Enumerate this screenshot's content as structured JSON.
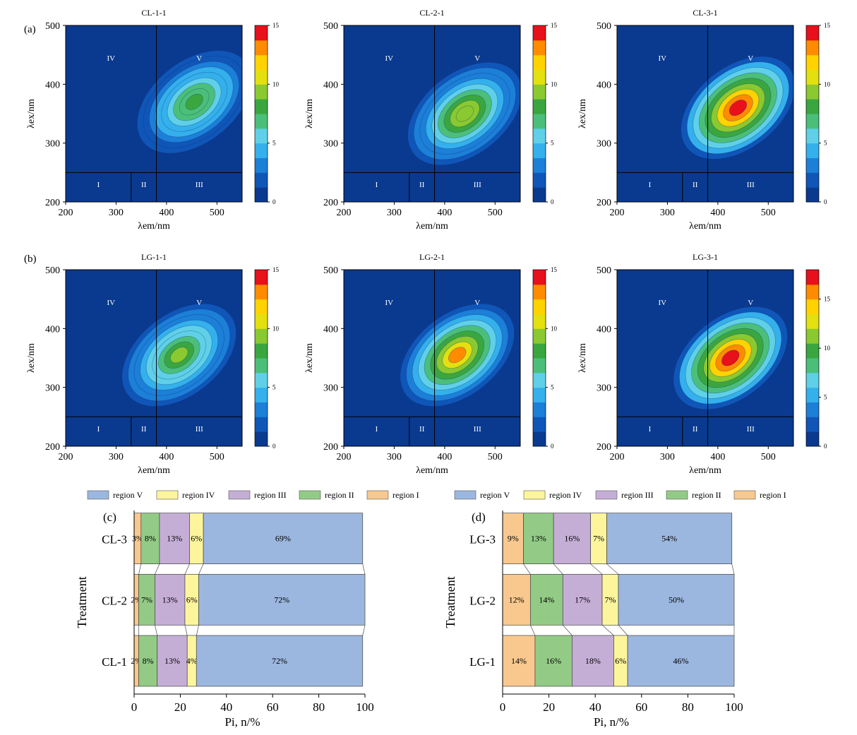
{
  "panel_labels": {
    "a": "(a)",
    "b": "(b)",
    "c": "(c)",
    "d": "(d)"
  },
  "eem": {
    "ylabel": "λex/nm",
    "xlabel": "λem/nm",
    "region_labels": [
      "I",
      "II",
      "III",
      "IV",
      "V"
    ],
    "xticks": [
      "200",
      "300",
      "400",
      "500"
    ],
    "yticks": [
      "200",
      "300",
      "400",
      "500"
    ]
  },
  "bar_legend": [
    "region V",
    "region IV",
    "region III",
    "region II",
    "region I"
  ],
  "colors": {
    "region_I": "#f8c88f",
    "region_II": "#93cb86",
    "region_III": "#c5aed6",
    "region_IV": "#fdf59c",
    "region_V": "#9cb7df",
    "eem_background": "#0a3a8f",
    "grid_line": "#000000"
  },
  "chart_data": [
    {
      "type": "heatmap",
      "title": "CL-1-1",
      "xlim": [
        200,
        550
      ],
      "ylim": [
        200,
        500
      ],
      "colorbar_range": [
        0,
        15
      ],
      "colorbar_ticks": [
        "0",
        "5",
        "10",
        "15"
      ],
      "peak": {
        "em": 455,
        "ex": 370,
        "intensity": 8
      },
      "region_bounds": {
        "em": [
          330,
          380
        ],
        "ex": 250
      }
    },
    {
      "type": "heatmap",
      "title": "CL-2-1",
      "xlim": [
        200,
        550
      ],
      "ylim": [
        200,
        500
      ],
      "colorbar_range": [
        0,
        15
      ],
      "colorbar_ticks": [
        "0",
        "5",
        "10",
        "15"
      ],
      "peak": {
        "em": 440,
        "ex": 350,
        "intensity": 10
      },
      "region_bounds": {
        "em": [
          330,
          380
        ],
        "ex": 250
      }
    },
    {
      "type": "heatmap",
      "title": "CL-3-1",
      "xlim": [
        200,
        550
      ],
      "ylim": [
        200,
        500
      ],
      "colorbar_range": [
        0,
        15
      ],
      "colorbar_ticks": [
        "0",
        "5",
        "10",
        "15"
      ],
      "peak": {
        "em": 440,
        "ex": 360,
        "intensity": 15
      },
      "region_bounds": {
        "em": [
          330,
          380
        ],
        "ex": 250
      }
    },
    {
      "type": "heatmap",
      "title": "LG-1-1",
      "xlim": [
        200,
        550
      ],
      "ylim": [
        200,
        500
      ],
      "colorbar_range": [
        0,
        15
      ],
      "colorbar_ticks": [
        "0",
        "5",
        "10",
        "15"
      ],
      "peak": {
        "em": 425,
        "ex": 355,
        "intensity": 9
      },
      "region_bounds": {
        "em": [
          330,
          380
        ],
        "ex": 250
      }
    },
    {
      "type": "heatmap",
      "title": "LG-2-1",
      "xlim": [
        200,
        550
      ],
      "ylim": [
        200,
        500
      ],
      "colorbar_range": [
        0,
        15
      ],
      "colorbar_ticks": [
        "0",
        "5",
        "10",
        "15"
      ],
      "peak": {
        "em": 425,
        "ex": 355,
        "intensity": 13
      },
      "region_bounds": {
        "em": [
          330,
          380
        ],
        "ex": 250
      }
    },
    {
      "type": "heatmap",
      "title": "LG-3-1",
      "xlim": [
        200,
        550
      ],
      "ylim": [
        200,
        500
      ],
      "colorbar_range": [
        0,
        18
      ],
      "colorbar_ticks": [
        "0",
        "5",
        "10",
        "15"
      ],
      "peak": {
        "em": 425,
        "ex": 350,
        "intensity": 18
      },
      "region_bounds": {
        "em": [
          330,
          380
        ],
        "ex": 250
      }
    },
    {
      "type": "bar",
      "orientation": "horizontal",
      "stacked": true,
      "categories": [
        "CL-3",
        "CL-2",
        "CL-1"
      ],
      "series": [
        {
          "name": "region I",
          "values": [
            3,
            2,
            2
          ]
        },
        {
          "name": "region II",
          "values": [
            8,
            7,
            8
          ]
        },
        {
          "name": "region III",
          "values": [
            13,
            13,
            13
          ]
        },
        {
          "name": "region IV",
          "values": [
            6,
            6,
            4
          ]
        },
        {
          "name": "region V",
          "values": [
            69,
            72,
            72
          ]
        }
      ],
      "xlabel": "Pi, n/%",
      "ylabel": "Treatment",
      "xlim": [
        0,
        100
      ],
      "xticks": [
        "0",
        "20",
        "40",
        "60",
        "80",
        "100"
      ],
      "legend_position": "top"
    },
    {
      "type": "bar",
      "orientation": "horizontal",
      "stacked": true,
      "categories": [
        "LG-3",
        "LG-2",
        "LG-1"
      ],
      "series": [
        {
          "name": "region I",
          "values": [
            9,
            12,
            14
          ]
        },
        {
          "name": "region II",
          "values": [
            13,
            14,
            16
          ]
        },
        {
          "name": "region III",
          "values": [
            16,
            17,
            18
          ]
        },
        {
          "name": "region IV",
          "values": [
            7,
            7,
            6
          ]
        },
        {
          "name": "region V",
          "values": [
            54,
            50,
            46
          ]
        }
      ],
      "xlabel": "Pi, n/%",
      "ylabel": "Treatment",
      "xlim": [
        0,
        100
      ],
      "xticks": [
        "0",
        "20",
        "40",
        "60",
        "80",
        "100"
      ],
      "legend_position": "top"
    }
  ]
}
